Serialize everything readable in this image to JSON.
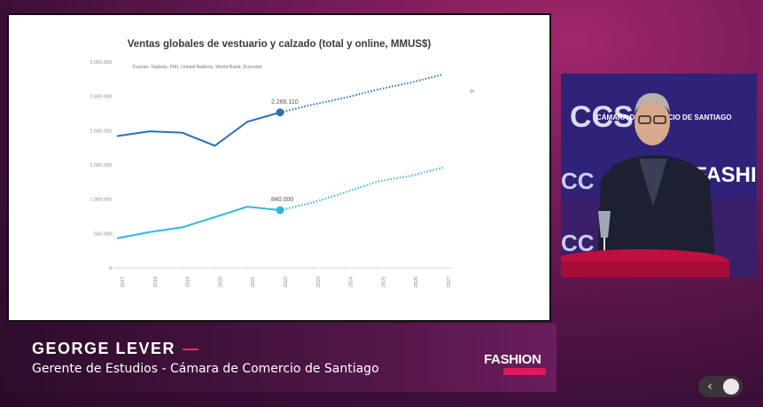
{
  "slide": {
    "title": "Ventas globales de vestuario y calzado (total y online, MMUS$)",
    "source": "Fuente: Statista, FMI, United Nations, World Bank, Eurostat",
    "cursor_glyph": "⊳"
  },
  "chart_data": {
    "type": "line",
    "title": "Ventas globales de vestuario y calzado (total y online, MMUS$)",
    "xlabel": "",
    "ylabel": "",
    "categories": [
      "2017",
      "2018",
      "2019",
      "2020",
      "2021",
      "2022",
      "2023",
      "2024",
      "2025",
      "2026",
      "2027"
    ],
    "y_ticks": [
      "0",
      "500.000",
      "1.000.000",
      "1.500.000",
      "2.000.000",
      "2.500.000",
      "3.000.000"
    ],
    "ylim": [
      0,
      3000000
    ],
    "grid": false,
    "series": [
      {
        "color": "#2a70b8",
        "values": [
          1920000,
          1990000,
          1970000,
          1780000,
          2130000,
          2266110,
          2380000,
          2480000,
          2600000,
          2700000,
          2820000
        ],
        "actual_until": 5,
        "highlight_index": 5,
        "highlight_label": "2.266.110"
      },
      {
        "color": "#2eb8e3",
        "values": [
          430000,
          520000,
          590000,
          740000,
          890000,
          840000,
          950000,
          1100000,
          1260000,
          1340000,
          1460000
        ],
        "actual_until": 5,
        "highlight_index": 5,
        "highlight_label": "840.000"
      }
    ]
  },
  "lower_third": {
    "name": "GEORGE LEVER",
    "dash": "—",
    "role": "Gerente de Estudios - Cámara de Comercio de Santiago",
    "logo": "FASHION"
  },
  "camera": {
    "backdrop_texts": [
      "CCS",
      "CÁMARA DE COMERCIO DE SANTIAGO",
      "FASHION"
    ]
  },
  "player": {
    "prev_glyph": "‹"
  }
}
